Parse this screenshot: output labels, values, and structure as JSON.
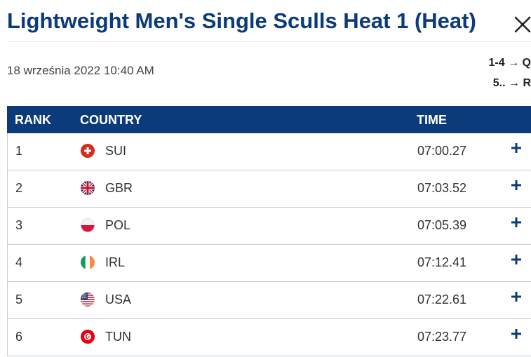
{
  "header": {
    "title": "Lightweight Men's Single Sculls Heat 1 (Heat)"
  },
  "meta": {
    "date": "18 września 2022 10:40 AM",
    "progression": [
      "1-4 → Q",
      "5.. → R"
    ]
  },
  "table": {
    "columns": {
      "rank": "RANK",
      "country": "COUNTRY",
      "time": "TIME"
    },
    "rows": [
      {
        "rank": "1",
        "country": "SUI",
        "time": "07:00.27",
        "flag": "switzerland-flag-icon"
      },
      {
        "rank": "2",
        "country": "GBR",
        "time": "07:03.52",
        "flag": "uk-flag-icon"
      },
      {
        "rank": "3",
        "country": "POL",
        "time": "07:05.39",
        "flag": "poland-flag-icon"
      },
      {
        "rank": "4",
        "country": "IRL",
        "time": "07:12.41",
        "flag": "ireland-flag-icon"
      },
      {
        "rank": "5",
        "country": "USA",
        "time": "07:22.61",
        "flag": "usa-flag-icon"
      },
      {
        "rank": "6",
        "country": "TUN",
        "time": "07:23.77",
        "flag": "tunisia-flag-icon"
      }
    ]
  },
  "colors": {
    "brand_navy": "#0b3b7a",
    "row_border": "#c8ccd2"
  }
}
